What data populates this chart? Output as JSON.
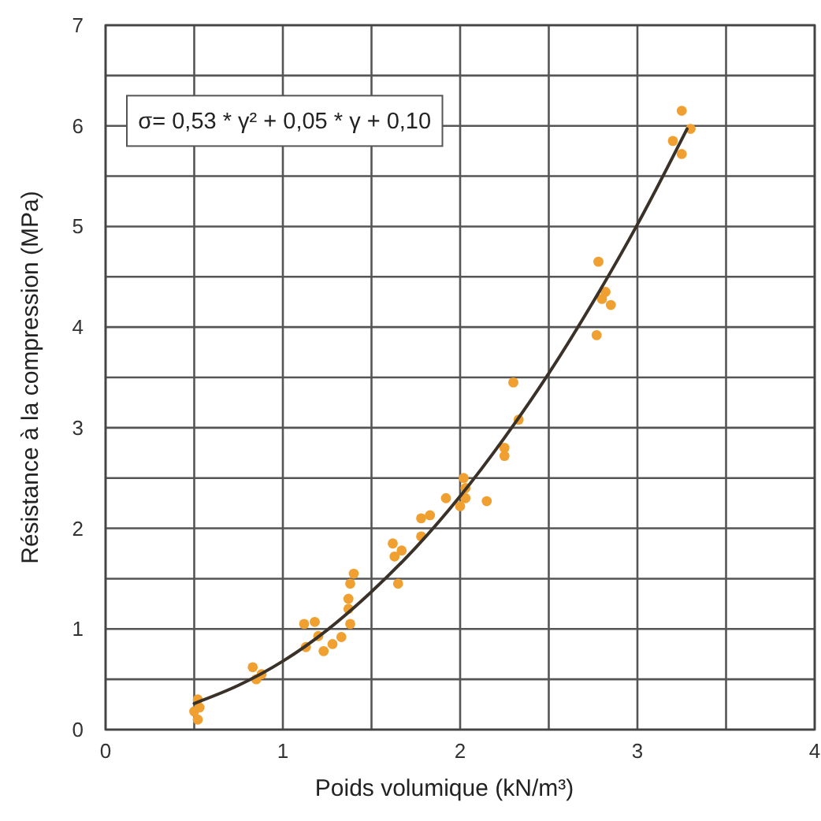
{
  "chart_data": {
    "type": "scatter",
    "xlabel": "Poids volumique  (kN/m³)",
    "ylabel": "Résistance à la compression (MPa)",
    "xlim": [
      0,
      4
    ],
    "ylim": [
      0,
      7
    ],
    "xticks": [
      0,
      {
        "value": 0.5,
        "label": null
      },
      1,
      {
        "value": 1.5,
        "label": null
      },
      2,
      {
        "value": 2.5,
        "label": null
      },
      3,
      {
        "value": 3.5,
        "label": null
      },
      4
    ],
    "yticks": [
      0,
      {
        "value": 0.5,
        "label": null
      },
      1,
      {
        "value": 1.5,
        "label": null
      },
      2,
      {
        "value": 2.5,
        "label": null
      },
      3,
      {
        "value": 3.5,
        "label": null
      },
      4,
      {
        "value": 4.5,
        "label": null
      },
      5,
      {
        "value": 5.5,
        "label": null
      },
      6,
      {
        "value": 6.5,
        "label": null
      },
      7
    ],
    "grid": true,
    "marker": "circle",
    "annotations": [
      "σ= 0,53 * γ² + 0,05 * γ + 0,10"
    ],
    "series": [
      {
        "color": "#f0a030",
        "x": [
          0.5,
          0.52,
          0.52,
          0.53,
          0.83,
          0.85,
          0.88,
          1.12,
          1.13,
          1.18,
          1.2,
          1.23,
          1.28,
          1.33,
          1.38,
          1.37,
          1.4,
          1.38,
          1.37,
          1.62,
          1.63,
          1.65,
          1.67,
          1.78,
          1.78,
          1.83,
          1.92,
          2.02,
          2.03,
          2.03,
          2.0,
          2.15,
          2.25,
          2.25,
          2.3,
          2.33,
          2.78,
          2.82,
          2.8,
          2.85,
          2.77,
          3.2,
          3.25,
          3.25,
          3.3
        ],
        "values": [
          0.18,
          0.3,
          0.1,
          0.22,
          0.62,
          0.5,
          0.55,
          1.05,
          0.82,
          1.07,
          0.93,
          0.78,
          0.85,
          0.92,
          1.05,
          1.3,
          1.55,
          1.45,
          1.2,
          1.85,
          1.72,
          1.45,
          1.78,
          1.92,
          2.1,
          2.13,
          2.3,
          2.5,
          2.4,
          2.3,
          2.22,
          2.27,
          2.72,
          2.8,
          3.45,
          3.08,
          4.65,
          4.35,
          4.28,
          4.22,
          3.92,
          5.85,
          6.15,
          5.72,
          5.97
        ]
      },
      {
        "type": "line",
        "color": "#3a3228",
        "marker": "none",
        "x": [
          0.5,
          0.75,
          1,
          1.25,
          1.5,
          1.75,
          2,
          2.25,
          2.5,
          2.75,
          3,
          3.28
        ],
        "values": [
          0.26,
          0.44,
          0.68,
          0.99,
          1.37,
          1.81,
          2.32,
          2.9,
          3.54,
          4.25,
          5.02,
          5.97
        ]
      }
    ]
  }
}
